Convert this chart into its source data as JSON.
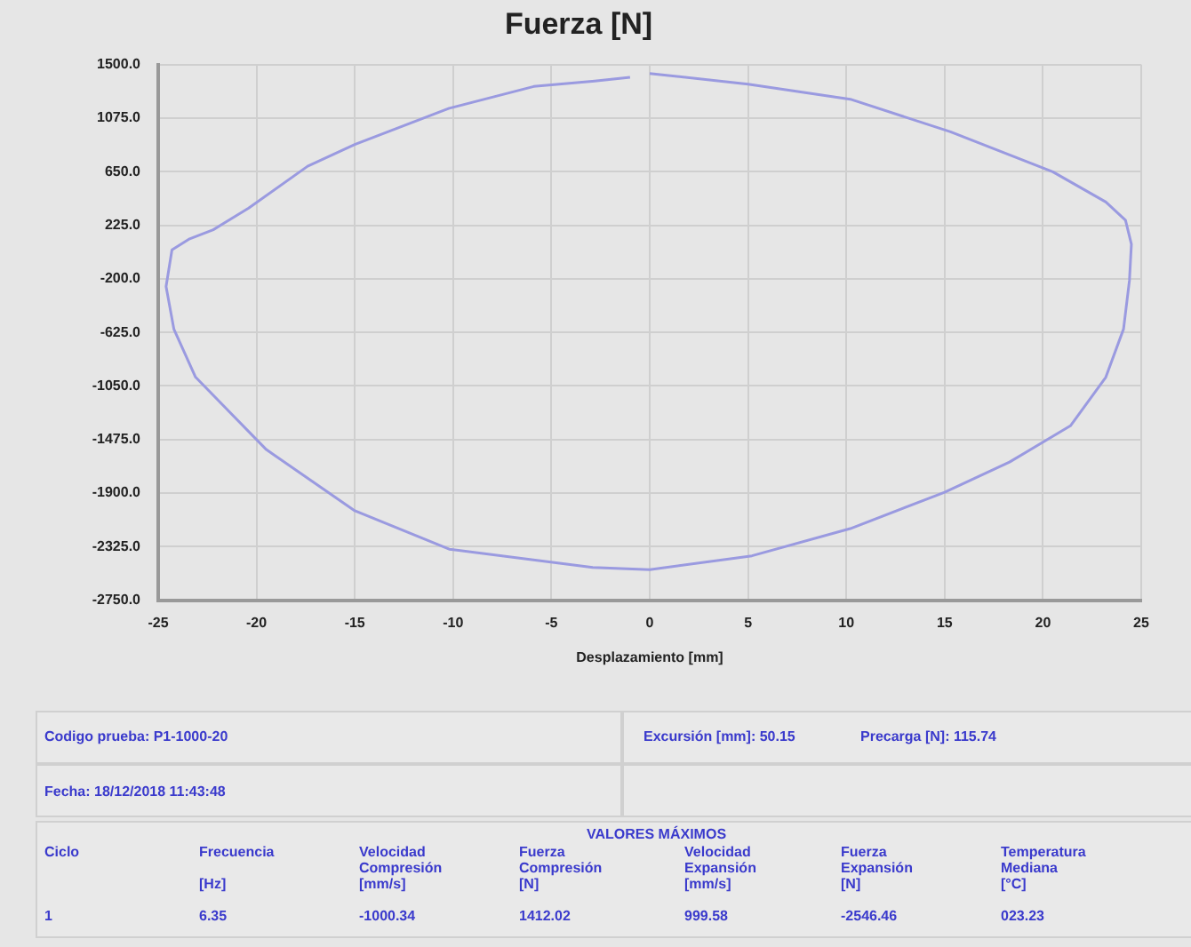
{
  "chart_data": {
    "type": "line",
    "title": "Fuerza [N]",
    "xlabel": "Desplazamiento [mm]",
    "series": [
      {
        "color": "#9a9ae0",
        "x": [
          0,
          5,
          10.2,
          15.3,
          20.5,
          23.2,
          24.2,
          24.5,
          24.4,
          24.1,
          23.2,
          21.4,
          18.3,
          15,
          10.2,
          5.2,
          0,
          -2.9,
          -10.2,
          -15,
          -19.5,
          -23.1,
          -24.2,
          -24.6,
          -24.3,
          -23.4,
          -22.2,
          -20.4,
          -17.4,
          -15,
          -10.2,
          -5.9,
          -2.8,
          -1
        ],
        "values": [
          1430,
          1346,
          1226,
          967,
          650,
          410,
          266,
          75,
          -214,
          -598,
          -980,
          -1366,
          -1654,
          -1894,
          -2182,
          -2398,
          -2508,
          -2490,
          -2345,
          -2040,
          -1555,
          -980,
          -600,
          -260,
          31,
          118,
          190,
          362,
          694,
          866,
          1154,
          1327,
          1370,
          1400
        ]
      }
    ],
    "xlim": [
      -25,
      25
    ],
    "xticks": [
      -25,
      -20,
      -15,
      -10,
      -5,
      0,
      5,
      10,
      15,
      20,
      25
    ],
    "ylim": [
      -2750,
      1500
    ],
    "yticks": [
      {
        "value": 1500,
        "label": "1500.0"
      },
      {
        "value": 1075,
        "label": "1075.0"
      },
      {
        "value": 650,
        "label": "650.0"
      },
      {
        "value": 225,
        "label": "225.0"
      },
      {
        "value": -200,
        "label": "-200.0"
      },
      {
        "value": -625,
        "label": "-625.0"
      },
      {
        "value": -1050,
        "label": "-1050.0"
      },
      {
        "value": -1475,
        "label": "-1475.0"
      },
      {
        "value": -1900,
        "label": "-1900.0"
      },
      {
        "value": -2325,
        "label": "-2325.0"
      },
      {
        "value": -2750,
        "label": "-2750.0"
      }
    ],
    "grid": true,
    "marker": "none",
    "line_style": "solid",
    "annotations": [
      "Codigo prueba: P1-1000-20",
      "Excursión [mm]: 50.15",
      "Precarga [N]: 115.74",
      "Fecha: 18/12/2018 11:43:48",
      "VALORES MÁXIMOS",
      "Ciclo",
      "Frecuencia\n\n[Hz]",
      "Velocidad\nCompresión\n[mm/s]",
      "Fuerza\nCompresión\n[N]",
      "Velocidad\nExpansión\n[mm/s]",
      "Fuerza\nExpansión\n[N]",
      "Temperatura\nMediana\n[°C]",
      "1",
      "6.35",
      "-1000.34",
      "1412.02",
      "999.58",
      "-2546.46",
      "023.23"
    ]
  }
}
